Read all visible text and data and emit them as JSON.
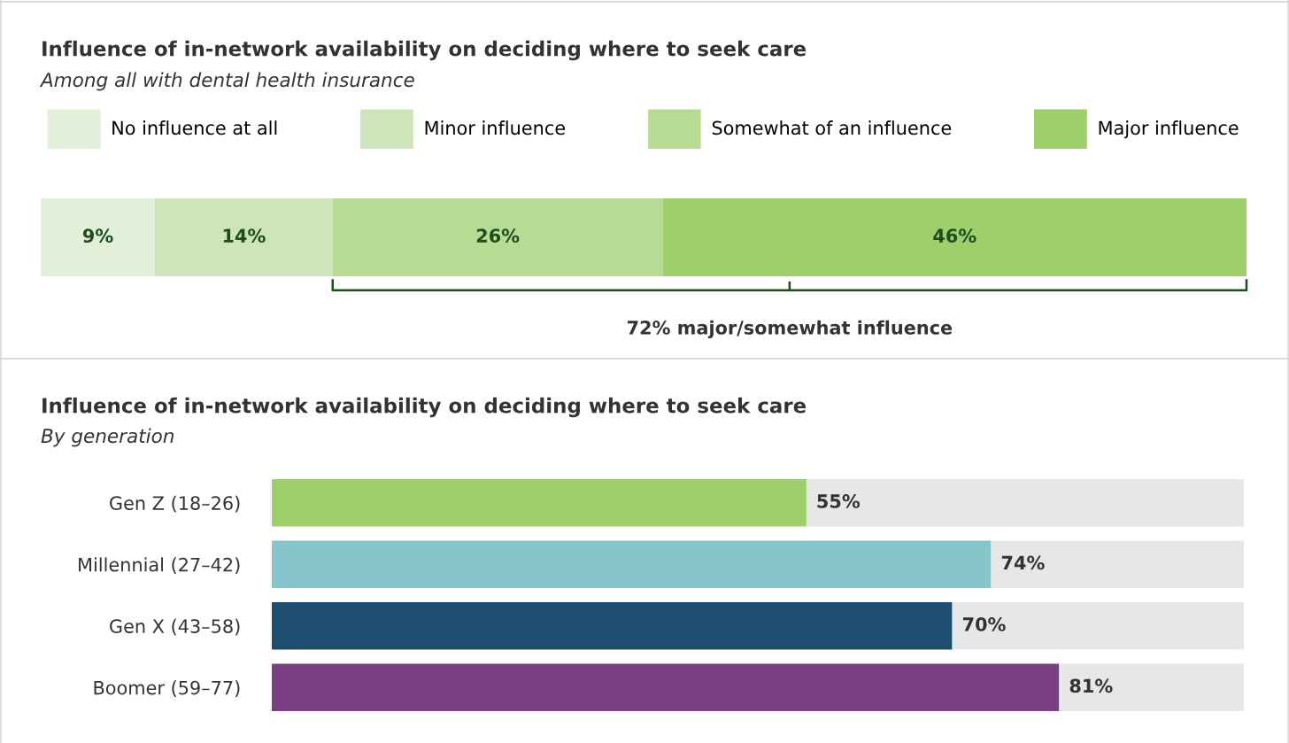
{
  "chart_data": [
    {
      "type": "bar",
      "orientation": "horizontal",
      "stacked": true,
      "title": "Influence of in-network availability on deciding where to seek care",
      "subtitle": "Among all with dental health insurance",
      "categories": [
        null
      ],
      "legend": "top",
      "tick_labels": false,
      "grid": false,
      "series": [
        {
          "name": "No influence at all",
          "color": "#e2efd9",
          "values": [
            9
          ],
          "value_labels": [
            "9%"
          ]
        },
        {
          "name": "Minor influence",
          "color": "#cde5b8",
          "values": [
            14
          ],
          "value_labels": [
            "14%"
          ]
        },
        {
          "name": "Somewhat of an influence",
          "color": "#b7db92",
          "values": [
            26
          ],
          "value_labels": [
            "26%"
          ]
        },
        {
          "name": "Major influence",
          "color": "#9ecf6a",
          "values": [
            46
          ],
          "value_labels": [
            "46%"
          ]
        }
      ],
      "annotations": [
        "72% major/somewhat influence"
      ]
    },
    {
      "type": "bar",
      "orientation": "horizontal",
      "stacked": true,
      "title": "Influence of in-network availability on deciding where to seek care",
      "subtitle": "By generation",
      "categories": [
        "Gen Z (18–26)",
        "Millennial (27–42)",
        "Gen X (43–58)",
        "Boomer (59–77)"
      ],
      "tick_labels": "y",
      "grid": false,
      "series": [
        {
          "colors": [
            "#9ecf6a",
            "#86c5cc",
            "#1d4e70",
            "#7b3f84"
          ],
          "values": [
            55,
            74,
            70,
            81
          ],
          "value_labels": [
            "55%",
            "74%",
            "70%",
            "81%"
          ]
        },
        {
          "color": "#e6e7e9",
          "values": [
            45,
            26,
            30,
            19
          ]
        }
      ]
    }
  ]
}
